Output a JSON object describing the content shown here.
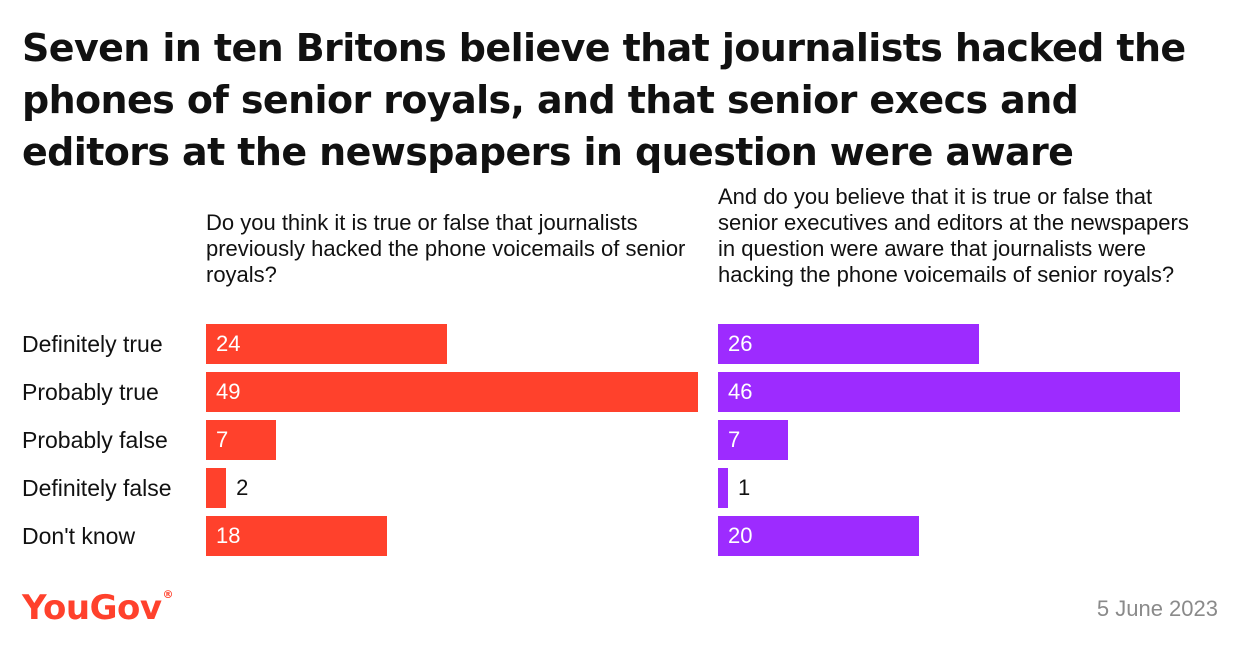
{
  "title": "Seven in ten Britons believe that journalists hacked the phones of senior royals, and that senior execs and editors at the newspapers in question were aware",
  "footer": {
    "brand": "YouGov",
    "brand_mark": "®",
    "brand_color": "#ff412c",
    "date": "5 June 2023"
  },
  "chart_data": {
    "type": "bar",
    "orientation": "horizontal",
    "categories": [
      "Definitely true",
      "Probably true",
      "Probably false",
      "Definitely false",
      "Don't know"
    ],
    "grid": false,
    "legend": false,
    "panels": [
      {
        "question": "Do you think it is true or false that journalists previously hacked the phone voicemails of senior royals?",
        "color": "#ff412c",
        "values": [
          24,
          49,
          7,
          2,
          18
        ],
        "xlim": [
          0,
          49
        ]
      },
      {
        "question": "And do you believe that it is true or false that senior executives and editors at the newspapers in question were aware that journalists were hacking the phone voicemails of senior royals?",
        "color": "#9d2bff",
        "values": [
          26,
          46,
          7,
          1,
          20
        ],
        "xlim": [
          0,
          46
        ]
      }
    ]
  }
}
